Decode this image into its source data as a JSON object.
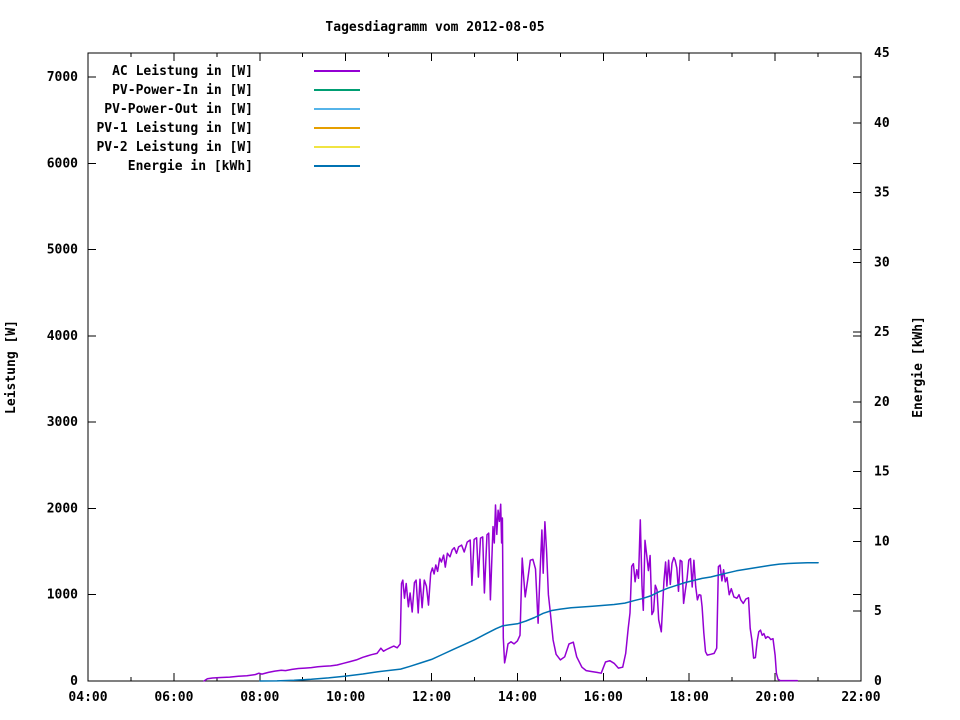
{
  "title": "Tagesdiagramm vom 2012-08-05",
  "axis_labels": {
    "left": "Leistung [W]",
    "right": "Energie [kWh]"
  },
  "chart_data": {
    "type": "line",
    "title": "Tagesdiagramm vom 2012-08-05",
    "grid": false,
    "legend_position": "top-left",
    "x": {
      "range_hours": [
        4,
        22
      ],
      "major_tick_hours": [
        4,
        6,
        8,
        10,
        12,
        14,
        16,
        18,
        20,
        22
      ],
      "minor_tick_hours": [
        5,
        7,
        9,
        11,
        13,
        15,
        17,
        19,
        21
      ],
      "tick_labels": [
        "04:00",
        "06:00",
        "08:00",
        "10:00",
        "12:00",
        "14:00",
        "16:00",
        "18:00",
        "20:00",
        "22:00"
      ]
    },
    "y_left": {
      "label": "Leistung [W]",
      "range": [
        0,
        7280
      ],
      "tick_values": [
        0,
        1000,
        2000,
        3000,
        4000,
        5000,
        6000,
        7000
      ]
    },
    "y_right": {
      "label": "Energie [kWh]",
      "range": [
        0,
        45
      ],
      "tick_values": [
        0,
        5,
        10,
        15,
        20,
        25,
        30,
        35,
        40,
        45
      ]
    },
    "legend": [
      {
        "label": "AC Leistung in [W]",
        "color": "#9400d3"
      },
      {
        "label": "PV-Power-In in [W]",
        "color": "#009e73"
      },
      {
        "label": "PV-Power-Out in [W]",
        "color": "#56b4e9"
      },
      {
        "label": "PV-1 Leistung in [W]",
        "color": "#e69f00"
      },
      {
        "label": "PV-2 Leistung in [W]",
        "color": "#f0e442"
      },
      {
        "label": "Energie in [kWh]",
        "color": "#0072b2"
      }
    ],
    "series": [
      {
        "name": "AC Leistung in [W]",
        "color": "#9400d3",
        "y_axis": "left",
        "points": [
          [
            6.7,
            0
          ],
          [
            6.78,
            25
          ],
          [
            6.9,
            35
          ],
          [
            7.1,
            40
          ],
          [
            7.3,
            45
          ],
          [
            7.5,
            55
          ],
          [
            7.7,
            60
          ],
          [
            7.9,
            75
          ],
          [
            7.98,
            90
          ],
          [
            8.05,
            80
          ],
          [
            8.2,
            100
          ],
          [
            8.35,
            115
          ],
          [
            8.5,
            125
          ],
          [
            8.6,
            120
          ],
          [
            8.75,
            135
          ],
          [
            8.9,
            145
          ],
          [
            9.05,
            150
          ],
          [
            9.2,
            155
          ],
          [
            9.35,
            165
          ],
          [
            9.5,
            170
          ],
          [
            9.65,
            175
          ],
          [
            9.8,
            185
          ],
          [
            9.95,
            205
          ],
          [
            10.1,
            225
          ],
          [
            10.25,
            245
          ],
          [
            10.4,
            275
          ],
          [
            10.5,
            290
          ],
          [
            10.6,
            305
          ],
          [
            10.73,
            320
          ],
          [
            10.82,
            380
          ],
          [
            10.88,
            345
          ],
          [
            10.95,
            365
          ],
          [
            11.05,
            390
          ],
          [
            11.12,
            405
          ],
          [
            11.2,
            385
          ],
          [
            11.27,
            430
          ],
          [
            11.3,
            1130
          ],
          [
            11.33,
            1170
          ],
          [
            11.37,
            960
          ],
          [
            11.41,
            1130
          ],
          [
            11.46,
            860
          ],
          [
            11.5,
            1020
          ],
          [
            11.55,
            800
          ],
          [
            11.6,
            1140
          ],
          [
            11.64,
            1170
          ],
          [
            11.69,
            790
          ],
          [
            11.73,
            1180
          ],
          [
            11.78,
            850
          ],
          [
            11.83,
            1170
          ],
          [
            11.88,
            1100
          ],
          [
            11.93,
            880
          ],
          [
            11.98,
            1250
          ],
          [
            12.02,
            1310
          ],
          [
            12.06,
            1240
          ],
          [
            12.1,
            1345
          ],
          [
            12.14,
            1270
          ],
          [
            12.19,
            1425
          ],
          [
            12.23,
            1380
          ],
          [
            12.28,
            1460
          ],
          [
            12.32,
            1320
          ],
          [
            12.37,
            1480
          ],
          [
            12.43,
            1440
          ],
          [
            12.48,
            1520
          ],
          [
            12.53,
            1545
          ],
          [
            12.58,
            1480
          ],
          [
            12.63,
            1555
          ],
          [
            12.7,
            1575
          ],
          [
            12.76,
            1495
          ],
          [
            12.83,
            1610
          ],
          [
            12.9,
            1635
          ],
          [
            12.94,
            1110
          ],
          [
            12.99,
            1640
          ],
          [
            13.05,
            1660
          ],
          [
            13.09,
            1205
          ],
          [
            13.14,
            1655
          ],
          [
            13.19,
            1670
          ],
          [
            13.23,
            1020
          ],
          [
            13.29,
            1695
          ],
          [
            13.33,
            1715
          ],
          [
            13.37,
            940
          ],
          [
            13.43,
            1790
          ],
          [
            13.46,
            1600
          ],
          [
            13.49,
            2040
          ],
          [
            13.52,
            1700
          ],
          [
            13.55,
            1980
          ],
          [
            13.58,
            1850
          ],
          [
            13.61,
            2050
          ],
          [
            13.63,
            1600
          ],
          [
            13.65,
            1890
          ],
          [
            13.67,
            500
          ],
          [
            13.7,
            210
          ],
          [
            13.74,
            310
          ],
          [
            13.78,
            430
          ],
          [
            13.85,
            455
          ],
          [
            13.92,
            430
          ],
          [
            14.0,
            465
          ],
          [
            14.06,
            530
          ],
          [
            14.11,
            1425
          ],
          [
            14.14,
            1230
          ],
          [
            14.18,
            975
          ],
          [
            14.24,
            1180
          ],
          [
            14.3,
            1400
          ],
          [
            14.36,
            1410
          ],
          [
            14.42,
            1300
          ],
          [
            14.48,
            670
          ],
          [
            14.53,
            1300
          ],
          [
            14.57,
            1750
          ],
          [
            14.6,
            1250
          ],
          [
            14.64,
            1845
          ],
          [
            14.68,
            1500
          ],
          [
            14.72,
            1000
          ],
          [
            14.76,
            820
          ],
          [
            14.83,
            475
          ],
          [
            14.9,
            310
          ],
          [
            15.0,
            245
          ],
          [
            15.1,
            280
          ],
          [
            15.2,
            430
          ],
          [
            15.3,
            450
          ],
          [
            15.38,
            280
          ],
          [
            15.5,
            160
          ],
          [
            15.6,
            120
          ],
          [
            15.72,
            110
          ],
          [
            15.85,
            100
          ],
          [
            15.95,
            90
          ],
          [
            16.05,
            220
          ],
          [
            16.15,
            235
          ],
          [
            16.25,
            205
          ],
          [
            16.35,
            150
          ],
          [
            16.45,
            160
          ],
          [
            16.52,
            320
          ],
          [
            16.58,
            610
          ],
          [
            16.62,
            790
          ],
          [
            16.66,
            1330
          ],
          [
            16.7,
            1360
          ],
          [
            16.74,
            1150
          ],
          [
            16.78,
            1290
          ],
          [
            16.82,
            1190
          ],
          [
            16.86,
            1868
          ],
          [
            16.9,
            1100
          ],
          [
            16.93,
            820
          ],
          [
            16.97,
            1630
          ],
          [
            17.01,
            1460
          ],
          [
            17.05,
            1280
          ],
          [
            17.09,
            1455
          ],
          [
            17.13,
            770
          ],
          [
            17.17,
            810
          ],
          [
            17.21,
            1110
          ],
          [
            17.25,
            1055
          ],
          [
            17.29,
            710
          ],
          [
            17.35,
            570
          ],
          [
            17.41,
            1150
          ],
          [
            17.45,
            1380
          ],
          [
            17.48,
            1100
          ],
          [
            17.52,
            1400
          ],
          [
            17.56,
            1120
          ],
          [
            17.6,
            1365
          ],
          [
            17.64,
            1430
          ],
          [
            17.67,
            1400
          ],
          [
            17.71,
            1310
          ],
          [
            17.75,
            1040
          ],
          [
            17.79,
            1400
          ],
          [
            17.83,
            1385
          ],
          [
            17.87,
            900
          ],
          [
            17.91,
            1055
          ],
          [
            17.95,
            1190
          ],
          [
            17.99,
            1400
          ],
          [
            18.03,
            1420
          ],
          [
            18.07,
            1090
          ],
          [
            18.11,
            1400
          ],
          [
            18.15,
            1095
          ],
          [
            18.19,
            940
          ],
          [
            18.23,
            1000
          ],
          [
            18.27,
            995
          ],
          [
            18.3,
            860
          ],
          [
            18.34,
            560
          ],
          [
            18.38,
            340
          ],
          [
            18.42,
            300
          ],
          [
            18.5,
            310
          ],
          [
            18.58,
            320
          ],
          [
            18.64,
            380
          ],
          [
            18.68,
            1325
          ],
          [
            18.72,
            1345
          ],
          [
            18.76,
            1160
          ],
          [
            18.8,
            1290
          ],
          [
            18.84,
            1150
          ],
          [
            18.88,
            1200
          ],
          [
            18.93,
            1000
          ],
          [
            18.98,
            1070
          ],
          [
            19.04,
            975
          ],
          [
            19.11,
            960
          ],
          [
            19.16,
            1000
          ],
          [
            19.2,
            940
          ],
          [
            19.26,
            900
          ],
          [
            19.32,
            950
          ],
          [
            19.38,
            965
          ],
          [
            19.42,
            610
          ],
          [
            19.46,
            475
          ],
          [
            19.5,
            265
          ],
          [
            19.54,
            270
          ],
          [
            19.58,
            455
          ],
          [
            19.62,
            570
          ],
          [
            19.66,
            590
          ],
          [
            19.7,
            530
          ],
          [
            19.74,
            550
          ],
          [
            19.78,
            495
          ],
          [
            19.82,
            515
          ],
          [
            19.86,
            505
          ],
          [
            19.9,
            480
          ],
          [
            19.95,
            490
          ],
          [
            20.0,
            300
          ],
          [
            20.03,
            90
          ],
          [
            20.07,
            20
          ],
          [
            20.12,
            5
          ],
          [
            20.25,
            5
          ],
          [
            20.4,
            5
          ],
          [
            20.52,
            5
          ]
        ]
      },
      {
        "name": "Energie in [kWh]",
        "color": "#0072b2",
        "y_axis": "right",
        "points": [
          [
            8.0,
            0
          ],
          [
            8.4,
            0.01
          ],
          [
            8.8,
            0.05
          ],
          [
            9.2,
            0.12
          ],
          [
            9.6,
            0.22
          ],
          [
            10.0,
            0.35
          ],
          [
            10.4,
            0.5
          ],
          [
            10.73,
            0.65
          ],
          [
            11.0,
            0.75
          ],
          [
            11.28,
            0.85
          ],
          [
            11.5,
            1.05
          ],
          [
            11.75,
            1.3
          ],
          [
            12.0,
            1.55
          ],
          [
            12.25,
            1.9
          ],
          [
            12.5,
            2.25
          ],
          [
            12.75,
            2.6
          ],
          [
            13.0,
            2.95
          ],
          [
            13.25,
            3.35
          ],
          [
            13.5,
            3.75
          ],
          [
            13.65,
            3.95
          ],
          [
            13.8,
            4.02
          ],
          [
            14.0,
            4.1
          ],
          [
            14.2,
            4.3
          ],
          [
            14.4,
            4.55
          ],
          [
            14.6,
            4.85
          ],
          [
            14.8,
            5.05
          ],
          [
            15.0,
            5.15
          ],
          [
            15.25,
            5.25
          ],
          [
            15.5,
            5.3
          ],
          [
            15.75,
            5.35
          ],
          [
            16.0,
            5.42
          ],
          [
            16.25,
            5.48
          ],
          [
            16.5,
            5.58
          ],
          [
            16.7,
            5.75
          ],
          [
            16.9,
            5.9
          ],
          [
            17.1,
            6.1
          ],
          [
            17.3,
            6.4
          ],
          [
            17.5,
            6.65
          ],
          [
            17.7,
            6.85
          ],
          [
            17.9,
            7.05
          ],
          [
            18.1,
            7.2
          ],
          [
            18.3,
            7.35
          ],
          [
            18.5,
            7.45
          ],
          [
            18.7,
            7.6
          ],
          [
            18.9,
            7.75
          ],
          [
            19.1,
            7.9
          ],
          [
            19.3,
            8.0
          ],
          [
            19.5,
            8.1
          ],
          [
            19.7,
            8.2
          ],
          [
            19.9,
            8.3
          ],
          [
            20.1,
            8.38
          ],
          [
            20.3,
            8.42
          ],
          [
            20.5,
            8.45
          ],
          [
            20.75,
            8.47
          ],
          [
            21.0,
            8.48
          ]
        ]
      }
    ]
  }
}
